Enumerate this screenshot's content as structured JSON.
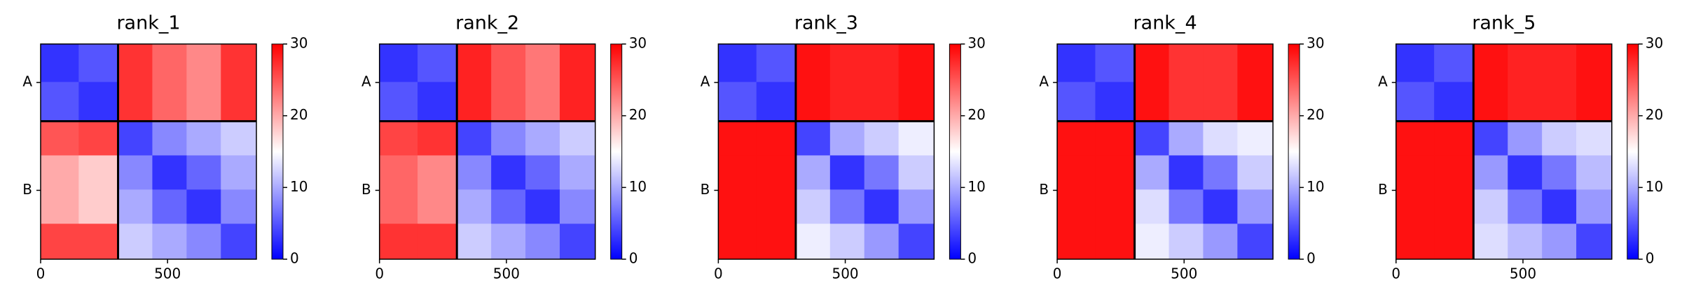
{
  "chart_data": [
    {
      "type": "heatmap",
      "title": "rank_1",
      "colormap": "bwr",
      "xbins": [
        0,
        150,
        305,
        440,
        575,
        710,
        850
      ],
      "ybins": [
        0,
        150,
        305,
        440,
        575,
        710,
        850
      ],
      "values": [
        [
          3,
          5,
          27,
          24,
          22,
          27
        ],
        [
          5,
          3,
          27,
          24,
          22,
          27
        ],
        [
          25,
          26,
          4,
          8,
          10,
          12
        ],
        [
          20,
          18,
          8,
          3,
          6,
          10
        ],
        [
          20,
          18,
          10,
          6,
          3,
          8
        ],
        [
          26,
          26,
          12,
          10,
          8,
          4
        ]
      ],
      "xlim": [
        0,
        850
      ],
      "ylim": [
        0,
        850
      ],
      "xticks": [
        0,
        500
      ],
      "yticks": [
        {
          "value": 152,
          "label": "A"
        },
        {
          "value": 578,
          "label": "B"
        }
      ],
      "boundaries": [
        305
      ],
      "zlim": [
        0,
        30
      ],
      "zticks": [
        0,
        10,
        20,
        30
      ]
    },
    {
      "type": "heatmap",
      "title": "rank_2",
      "colormap": "bwr",
      "xbins": [
        0,
        150,
        305,
        440,
        575,
        710,
        850
      ],
      "ybins": [
        0,
        150,
        305,
        440,
        575,
        710,
        850
      ],
      "values": [
        [
          3,
          5,
          28,
          25,
          23,
          28
        ],
        [
          5,
          3,
          28,
          25,
          23,
          28
        ],
        [
          26,
          27,
          4,
          8,
          10,
          12
        ],
        [
          24,
          22,
          8,
          3,
          6,
          10
        ],
        [
          24,
          22,
          10,
          6,
          3,
          8
        ],
        [
          27,
          27,
          12,
          10,
          8,
          4
        ]
      ],
      "xlim": [
        0,
        850
      ],
      "ylim": [
        0,
        850
      ],
      "xticks": [
        0,
        500
      ],
      "yticks": [
        {
          "value": 152,
          "label": "A"
        },
        {
          "value": 578,
          "label": "B"
        }
      ],
      "boundaries": [
        305
      ],
      "zlim": [
        0,
        30
      ],
      "zticks": [
        0,
        10,
        20,
        30
      ]
    },
    {
      "type": "heatmap",
      "title": "rank_3",
      "colormap": "bwr",
      "xbins": [
        0,
        150,
        305,
        440,
        575,
        710,
        850
      ],
      "ybins": [
        0,
        150,
        305,
        440,
        575,
        710,
        850
      ],
      "values": [
        [
          3,
          5,
          29,
          28,
          28,
          29
        ],
        [
          5,
          3,
          29,
          28,
          28,
          29
        ],
        [
          29,
          29,
          4,
          10,
          12,
          14
        ],
        [
          29,
          29,
          10,
          3,
          7,
          12
        ],
        [
          29,
          29,
          12,
          7,
          3,
          9
        ],
        [
          29,
          29,
          14,
          12,
          9,
          4
        ]
      ],
      "xlim": [
        0,
        850
      ],
      "ylim": [
        0,
        850
      ],
      "xticks": [
        0,
        500
      ],
      "yticks": [
        {
          "value": 152,
          "label": "A"
        },
        {
          "value": 578,
          "label": "B"
        }
      ],
      "boundaries": [
        305
      ],
      "zlim": [
        0,
        30
      ],
      "zticks": [
        0,
        10,
        20,
        30
      ]
    },
    {
      "type": "heatmap",
      "title": "rank_4",
      "colormap": "bwr",
      "xbins": [
        0,
        150,
        305,
        440,
        575,
        710,
        850
      ],
      "ybins": [
        0,
        150,
        305,
        440,
        575,
        710,
        850
      ],
      "values": [
        [
          3,
          5,
          29,
          27,
          27,
          29
        ],
        [
          5,
          3,
          29,
          27,
          27,
          29
        ],
        [
          29,
          29,
          4,
          10,
          13,
          14
        ],
        [
          29,
          29,
          10,
          3,
          7,
          12
        ],
        [
          29,
          29,
          13,
          7,
          3,
          9
        ],
        [
          29,
          29,
          14,
          12,
          9,
          4
        ]
      ],
      "xlim": [
        0,
        850
      ],
      "ylim": [
        0,
        850
      ],
      "xticks": [
        0,
        500
      ],
      "yticks": [
        {
          "value": 152,
          "label": "A"
        },
        {
          "value": 578,
          "label": "B"
        }
      ],
      "boundaries": [
        305
      ],
      "zlim": [
        0,
        30
      ],
      "zticks": [
        0,
        10,
        20,
        30
      ]
    },
    {
      "type": "heatmap",
      "title": "rank_5",
      "colormap": "bwr",
      "xbins": [
        0,
        150,
        305,
        440,
        575,
        710,
        850
      ],
      "ybins": [
        0,
        150,
        305,
        440,
        575,
        710,
        850
      ],
      "values": [
        [
          3,
          5,
          29,
          28,
          28,
          29
        ],
        [
          5,
          3,
          29,
          28,
          28,
          29
        ],
        [
          29,
          29,
          4,
          9,
          12,
          13
        ],
        [
          29,
          29,
          9,
          3,
          7,
          11
        ],
        [
          29,
          29,
          12,
          7,
          3,
          9
        ],
        [
          29,
          29,
          13,
          11,
          9,
          4
        ]
      ],
      "xlim": [
        0,
        850
      ],
      "ylim": [
        0,
        850
      ],
      "xticks": [
        0,
        500
      ],
      "yticks": [
        {
          "value": 152,
          "label": "A"
        },
        {
          "value": 578,
          "label": "B"
        }
      ],
      "boundaries": [
        305
      ],
      "zlim": [
        0,
        30
      ],
      "zticks": [
        0,
        10,
        20,
        30
      ]
    }
  ]
}
